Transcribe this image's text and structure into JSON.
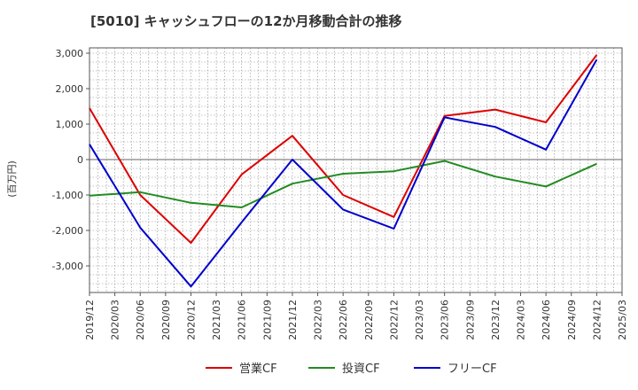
{
  "chart_data": {
    "type": "line",
    "title": "[5010]  キャッシュフローの12か月移動合計の推移",
    "ylabel": "(百万円)",
    "xlabel": "",
    "ylim": [
      -3750,
      3150
    ],
    "yticks": [
      3000,
      2000,
      1000,
      0,
      -1000,
      -2000,
      -3000
    ],
    "ytick_labels": [
      "3,000",
      "2,000",
      "1,000",
      "0",
      "-1,000",
      "-2,000",
      "-3,000"
    ],
    "x_ticks": [
      "2019/12",
      "2020/03",
      "2020/06",
      "2020/09",
      "2020/12",
      "2021/03",
      "2021/06",
      "2021/09",
      "2021/12",
      "2022/03",
      "2022/06",
      "2022/09",
      "2022/12",
      "2023/03",
      "2023/06",
      "2023/09",
      "2023/12",
      "2024/03",
      "2024/06",
      "2024/09",
      "2024/12",
      "2025/03"
    ],
    "x": [
      "2019/12",
      "2020/06",
      "2020/12",
      "2021/06",
      "2021/12",
      "2022/06",
      "2022/12",
      "2023/06",
      "2023/12",
      "2024/06",
      "2024/12"
    ],
    "grid": true,
    "legend_position": "bottom",
    "series": [
      {
        "name": "営業CF",
        "color": "#dd0000",
        "values": [
          1450,
          -1000,
          -2350,
          -420,
          670,
          -1000,
          -1620,
          1230,
          1410,
          1050,
          2950
        ]
      },
      {
        "name": "投資CF",
        "color": "#228b22",
        "values": [
          -1020,
          -920,
          -1220,
          -1350,
          -680,
          -400,
          -330,
          -40,
          -480,
          -760,
          -120
        ]
      },
      {
        "name": "フリーCF",
        "color": "#0000cc",
        "values": [
          430,
          -1920,
          -3580,
          -1770,
          0,
          -1410,
          -1950,
          1190,
          920,
          280,
          2820
        ]
      }
    ]
  }
}
